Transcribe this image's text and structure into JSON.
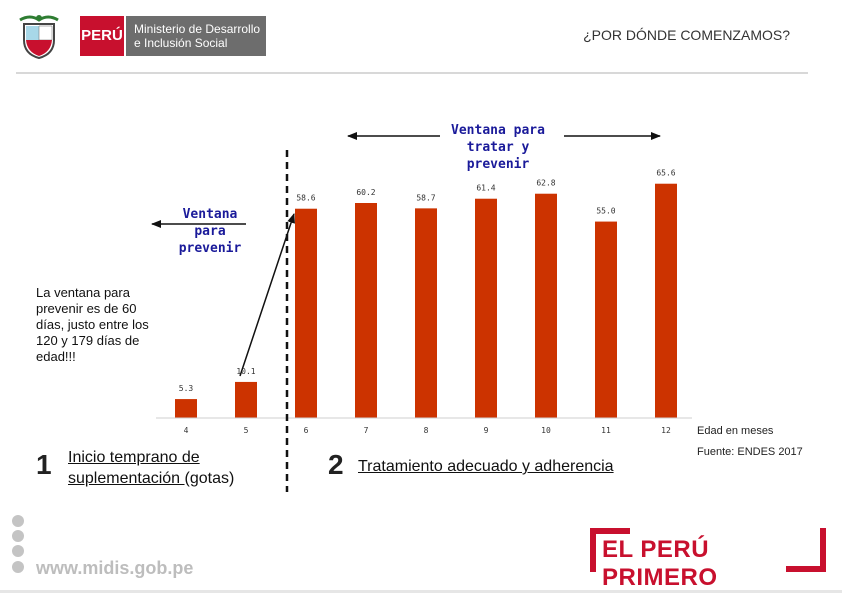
{
  "header": {
    "peru_label": "PERÚ",
    "ministry_line1": "Ministerio de Desarrollo",
    "ministry_line2": "e Inclusión Social",
    "title": "¿POR DÓNDE COMENZAMOS?"
  },
  "annotations": {
    "left_label": [
      "Ventana",
      "para",
      "prevenir"
    ],
    "right_label": [
      "Ventana para",
      "tratar y",
      "prevenir"
    ],
    "side_note": "La ventana para prevenir es de 60 días, justo entre los 120 y 179 días de edad!!!"
  },
  "steps": [
    {
      "number": "1",
      "text_underlined": "Inicio temprano de suplementación ",
      "text_plain": "(gotas)"
    },
    {
      "number": "2",
      "text_underlined": "Tratamiento adecuado y adherencia",
      "text_plain": ""
    }
  ],
  "chart_data": {
    "type": "bar",
    "categories": [
      "4",
      "5",
      "6",
      "7",
      "8",
      "9",
      "10",
      "11",
      "12"
    ],
    "values": [
      5.3,
      10.1,
      58.6,
      60.2,
      58.7,
      61.4,
      62.8,
      55.0,
      65.6
    ],
    "value_labels": [
      "5.3",
      "10.1",
      "58.6",
      "60.2",
      "58.7",
      "61.4",
      "62.8",
      "55.0",
      "65.6"
    ],
    "xlabel": "Edad en meses",
    "ylabel": "",
    "ylim": [
      0,
      70
    ],
    "grid": false,
    "bar_color": "#cc3300",
    "divider_between": [
      "5",
      "6"
    ]
  },
  "source": "Fuente: ENDES 2017",
  "footer": {
    "url": "www.midis.gob.pe",
    "logo_text": "EL PERÚ PRIMERO"
  },
  "colors": {
    "brand_red": "#c8102e",
    "annotation_blue": "#1a1a9a",
    "bar": "#cc3300"
  }
}
